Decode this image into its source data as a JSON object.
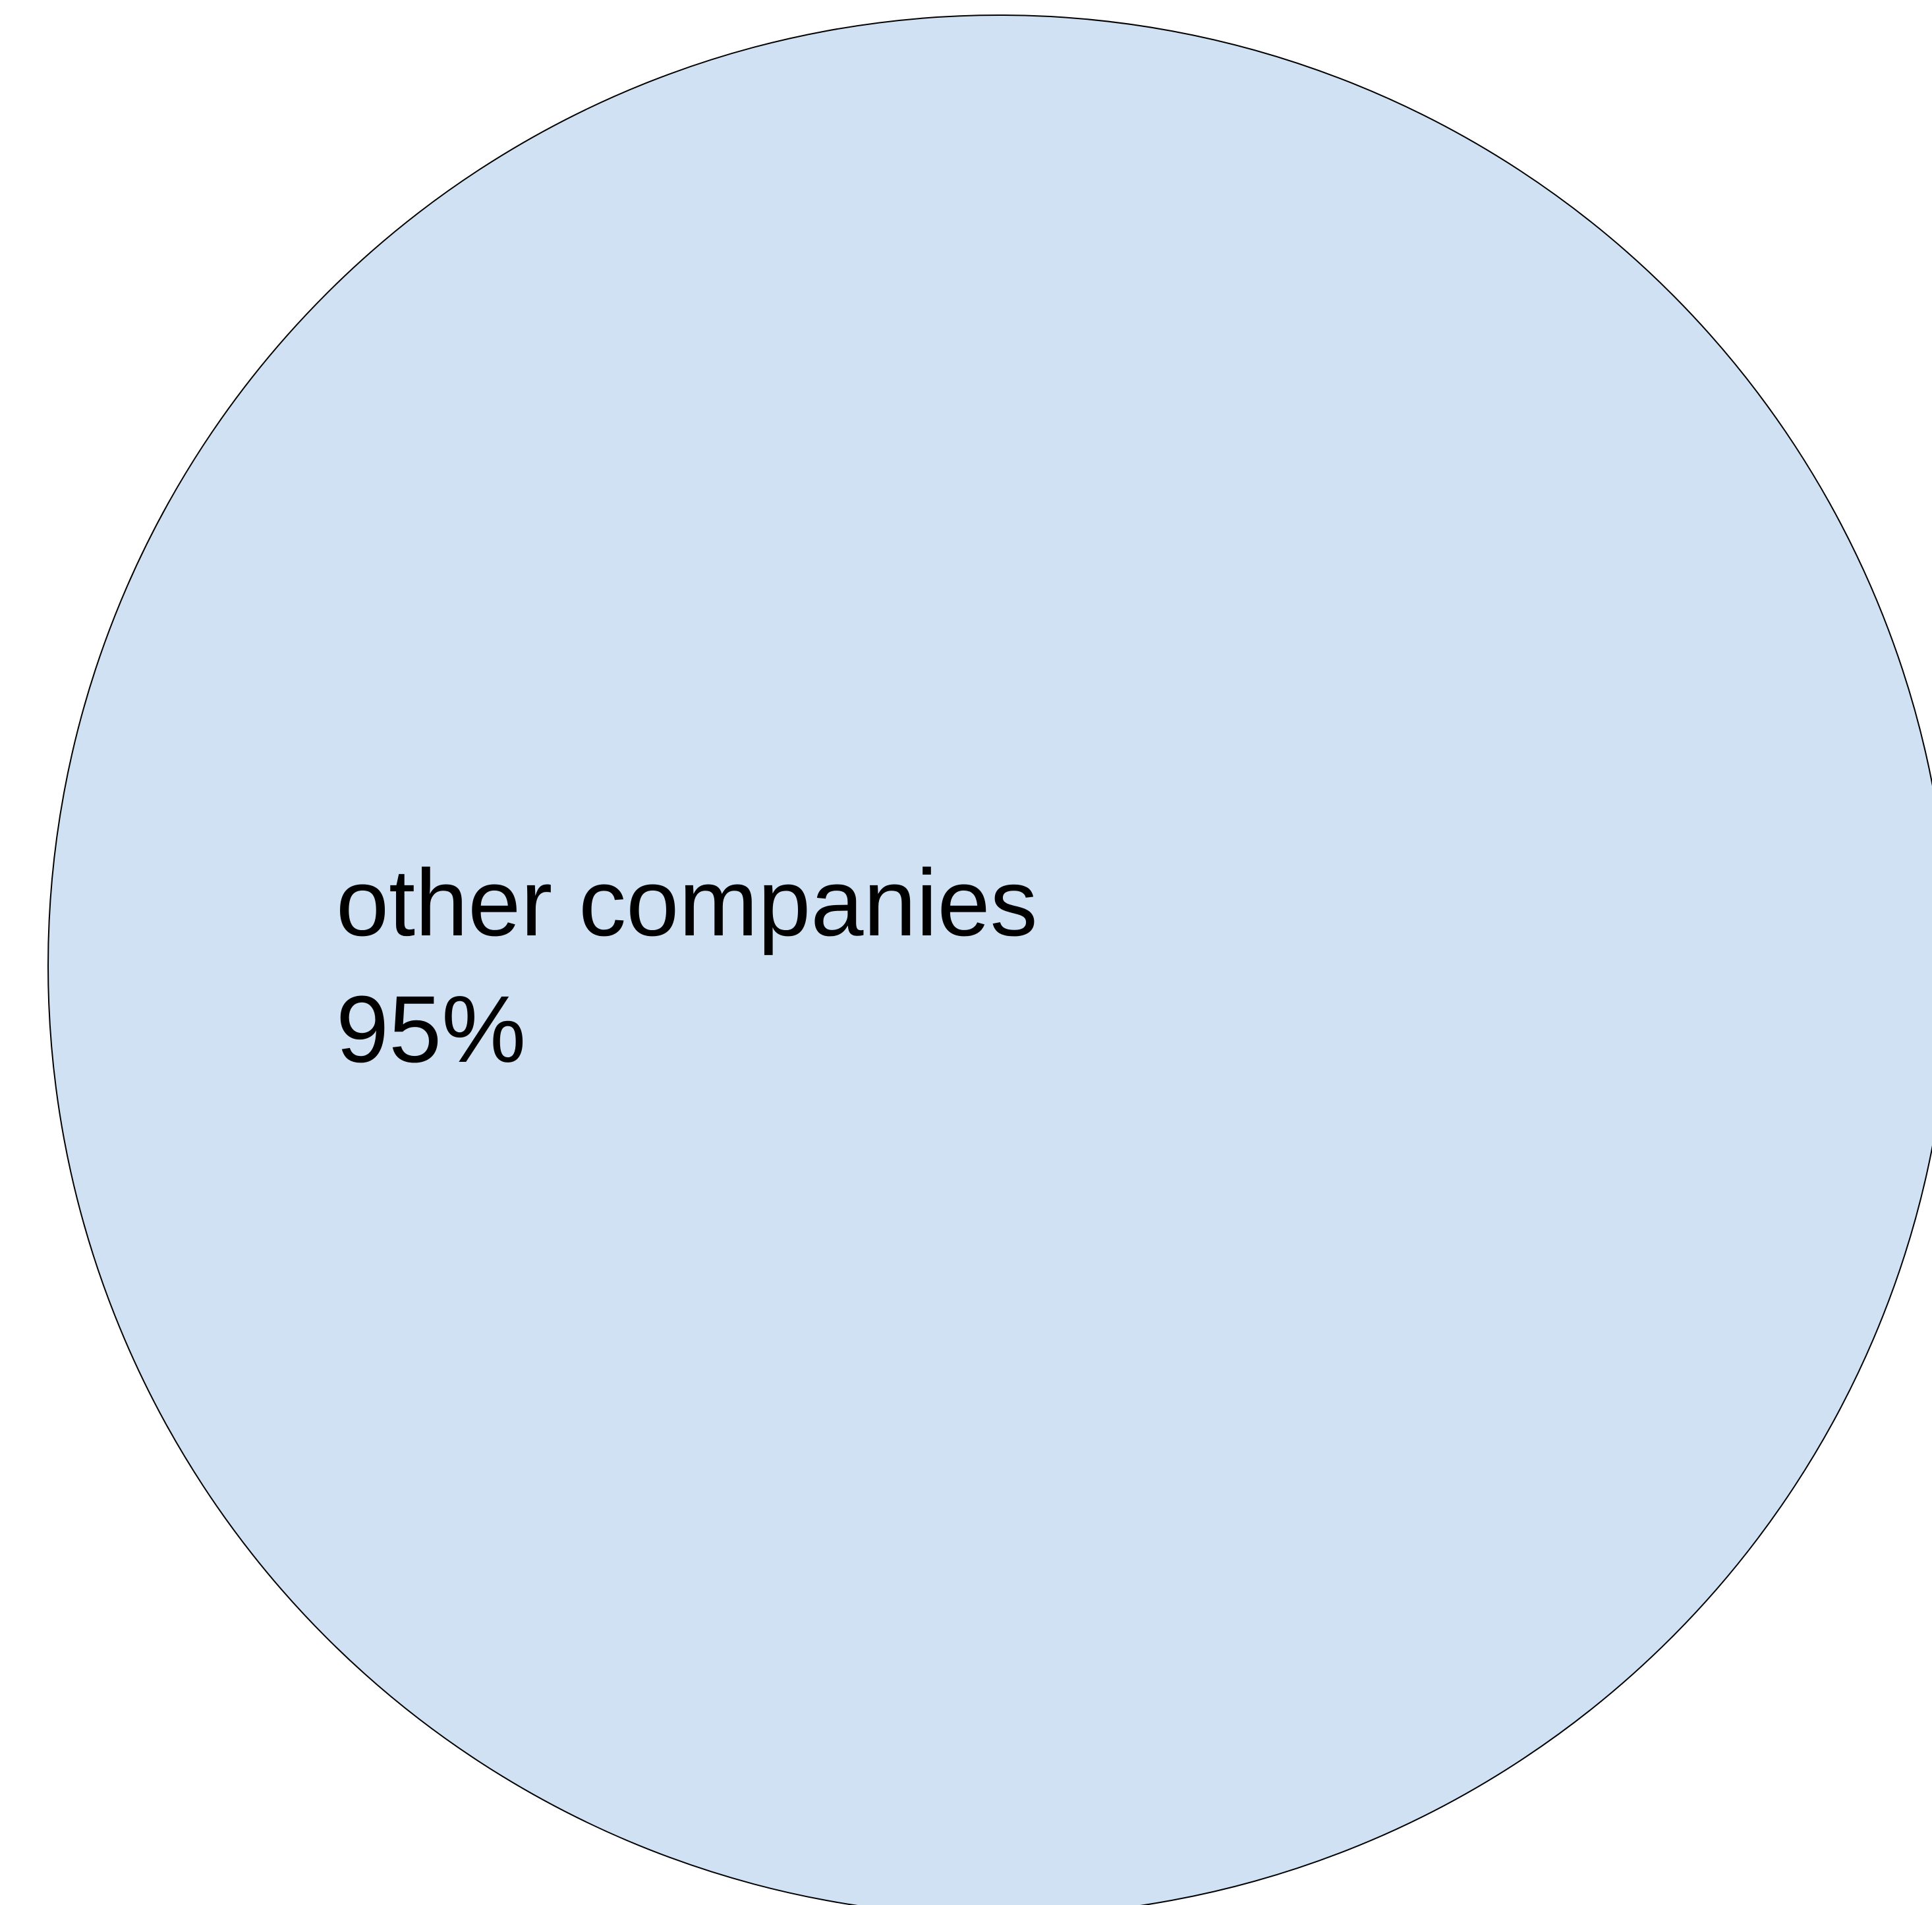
{
  "chart_data": {
    "type": "pie",
    "title": "",
    "slices": [
      {
        "label": "other companies",
        "value": 95,
        "value_label": "95%",
        "color": "#cfe1f3"
      }
    ],
    "total_percent": 100,
    "outline_color": "#000000",
    "legend": "none"
  }
}
